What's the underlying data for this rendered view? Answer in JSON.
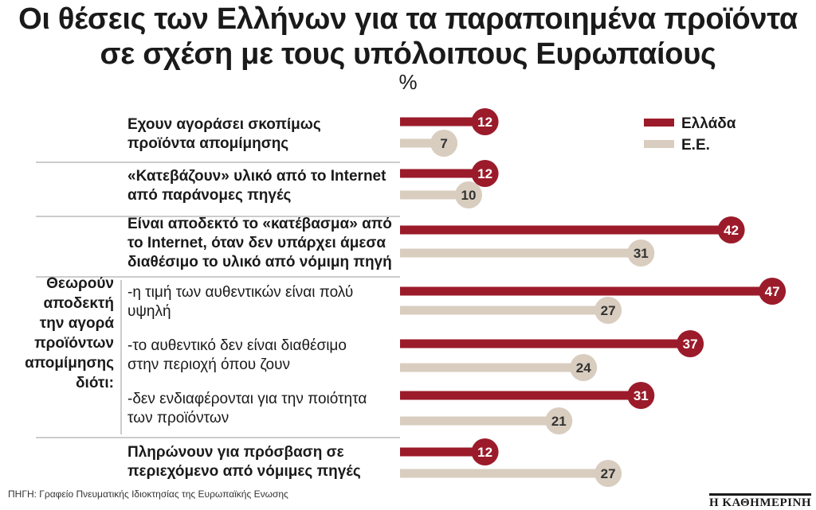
{
  "header": {
    "title_line1": "Οι θέσεις των Ελλήνων για τα παραποιημένα προϊόντα",
    "title_line2": "σε σχέση με τους υπόλοιπους Ευρωπαίους",
    "unit": "%"
  },
  "colors": {
    "greece": "#9b1b2a",
    "eu": "#d8cdbf",
    "divider": "#999999"
  },
  "chart_data": {
    "type": "bar",
    "orientation": "horizontal",
    "legend": {
      "position": "top-right",
      "entries": [
        "Ελλάδα",
        "Ε.Ε."
      ]
    },
    "group_label_lines": [
      "Θεωρούν",
      "αποδεκτή",
      "την αγορά",
      "προϊόντων",
      "απομίμησης",
      "διότι:"
    ],
    "categories": [
      {
        "lines": [
          "Εχουν αγοράσει σκοπίμως",
          "προϊόντα απομίμησης"
        ],
        "bold": true,
        "grouped": false
      },
      {
        "lines": [
          "«Κατεβάζουν» υλικό από το Internet",
          "από παράνομες πηγές"
        ],
        "bold": true,
        "grouped": false
      },
      {
        "lines": [
          "Είναι αποδεκτό το «κατέβασμα» από",
          "το Internet, όταν δεν υπάρχει άμεσα",
          "διαθέσιμο το υλικό από νόμιμη πηγή"
        ],
        "bold": true,
        "grouped": false
      },
      {
        "lines": [
          "-η τιμή των αυθεντικών είναι πολύ",
          "υψηλή"
        ],
        "bold": false,
        "grouped": true
      },
      {
        "lines": [
          "-το αυθεντικό δεν είναι διαθέσιμο",
          "στην περιοχή όπου ζουν"
        ],
        "bold": false,
        "grouped": true
      },
      {
        "lines": [
          "-δεν ενδιαφέρονται για την ποιότητα",
          "των προϊόντων"
        ],
        "bold": false,
        "grouped": true
      },
      {
        "lines": [
          "Πληρώνουν για πρόσβαση σε",
          "περιεχόμενο από νόμιμες πηγές"
        ],
        "bold": true,
        "grouped": false
      }
    ],
    "series": [
      {
        "name": "Ελλάδα",
        "values": [
          12,
          12,
          42,
          47,
          37,
          31,
          12
        ]
      },
      {
        "name": "Ε.Ε.",
        "values": [
          7,
          10,
          31,
          27,
          24,
          21,
          27
        ]
      }
    ],
    "xlim": [
      0,
      47
    ],
    "grid": false
  },
  "footer": {
    "source": "ΠΗΓΗ: Γραφείο Πνευματικής Ιδιοκτησίας της Ευρωπαϊκής Ενωσης",
    "logo": "Η ΚΑΘΗΜΕΡΙΝΗ"
  }
}
